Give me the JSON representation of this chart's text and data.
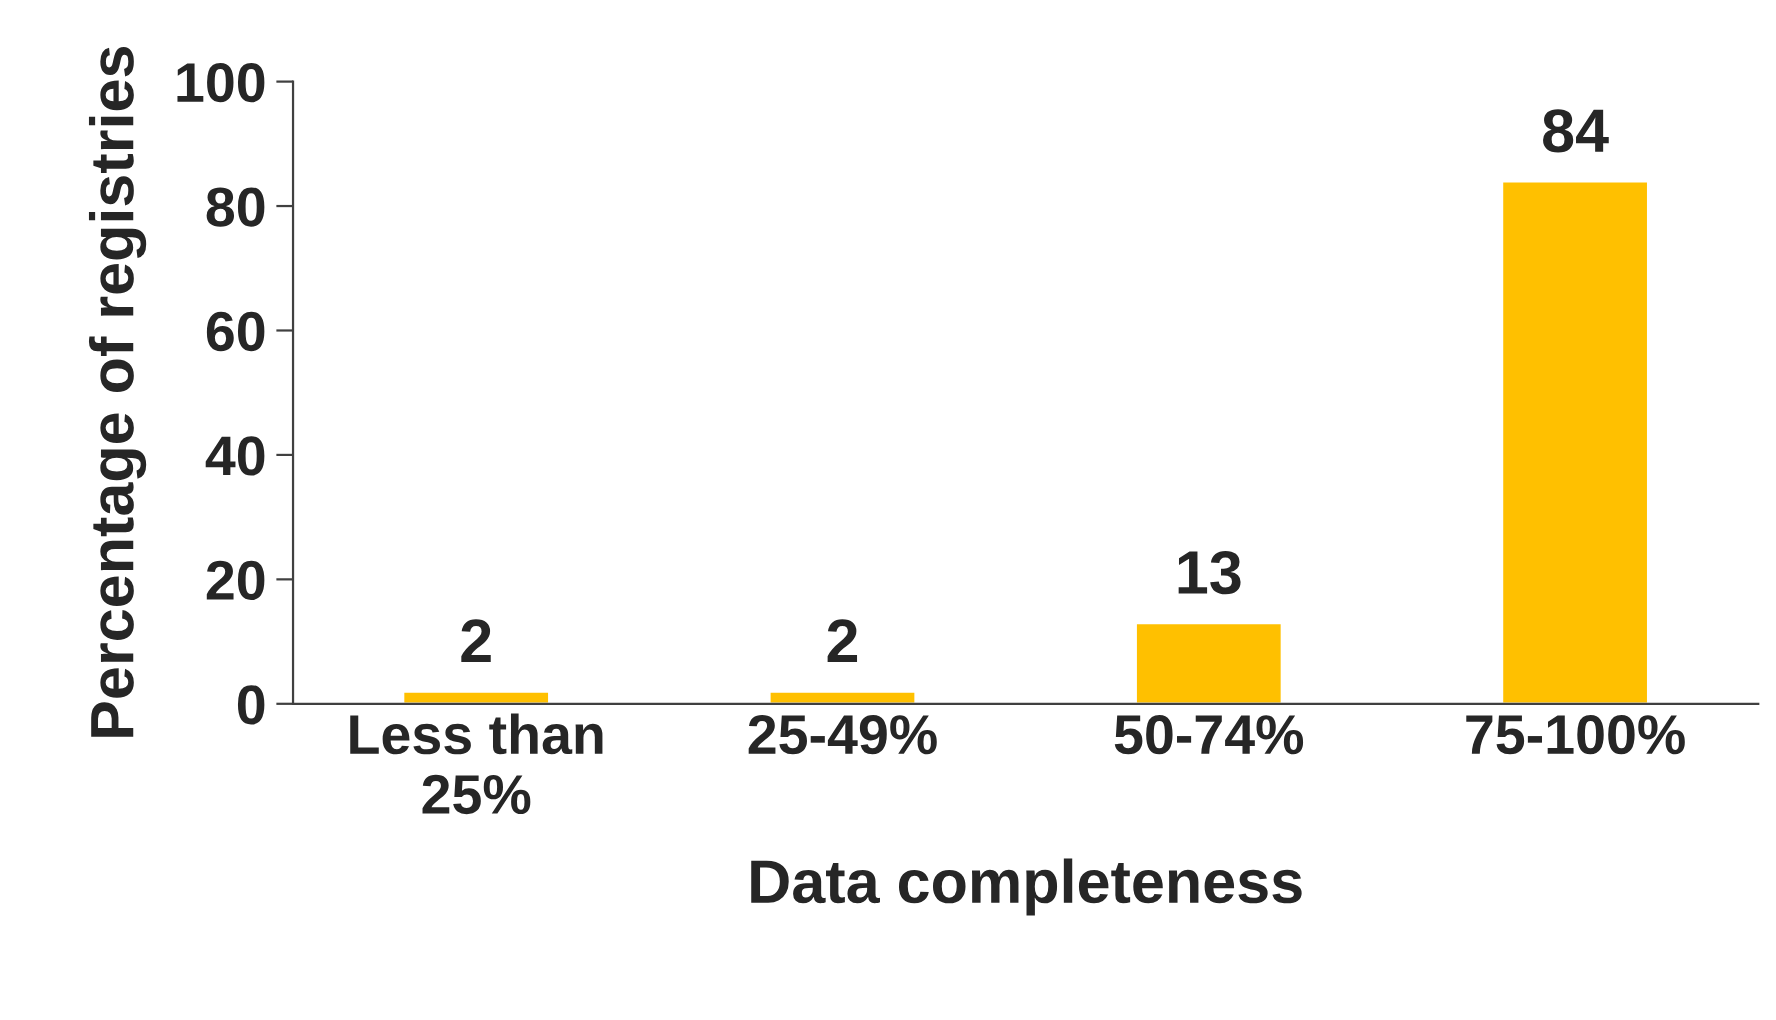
{
  "chart_data": {
    "type": "bar",
    "xlabel": "Data completeness",
    "ylabel": "Percentage of registries",
    "categories": [
      "Less than\n25%",
      "25-49%",
      "50-74%",
      "75-100%"
    ],
    "values": [
      2,
      2,
      13,
      84
    ],
    "color": "#ffc000",
    "ylim": [
      0,
      100
    ],
    "yticks": [
      0,
      20,
      40,
      60,
      80,
      100
    ],
    "data_labels": true,
    "grid": false
  }
}
